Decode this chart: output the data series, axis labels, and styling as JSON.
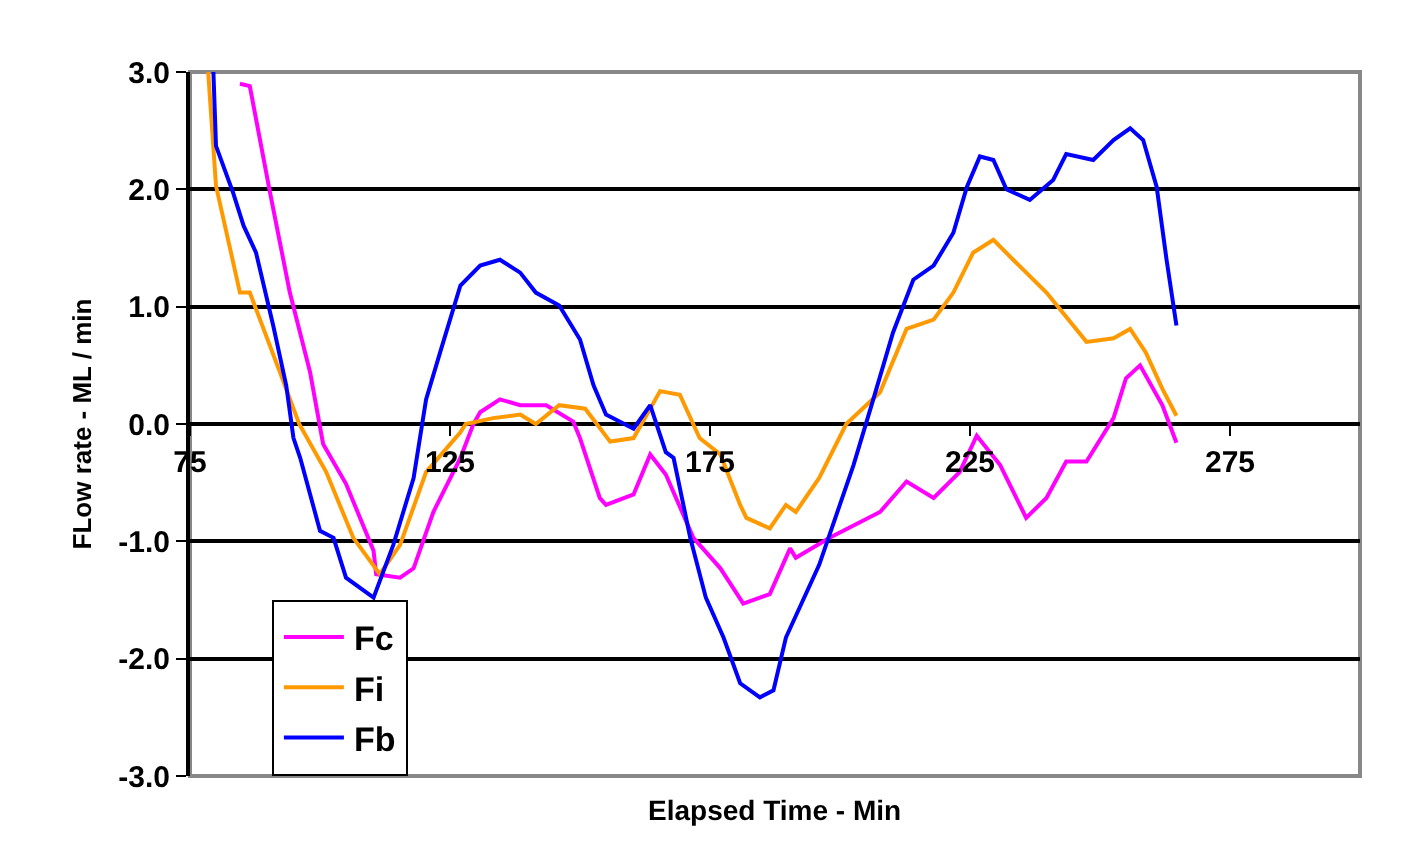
{
  "chart_data": {
    "type": "line",
    "xlabel": "Elapsed Time - Min",
    "ylabel": "FLow rate - ML / min",
    "xlim": [
      75,
      300
    ],
    "xticks": [
      75,
      125,
      175,
      225,
      275
    ],
    "ylim": [
      -3,
      3
    ],
    "yticks": [
      {
        "value": -3,
        "label": "-3.0"
      },
      {
        "value": -2,
        "label": "-2.0"
      },
      {
        "value": -1,
        "label": "-1.0"
      },
      {
        "value": 0,
        "label": "0.0"
      },
      {
        "value": 1,
        "label": "1.0"
      },
      {
        "value": 2,
        "label": "2.0"
      },
      {
        "value": 3,
        "label": "3.0"
      }
    ],
    "grid": "y",
    "legend": "bottom left",
    "marker": "none",
    "line_style": "solid",
    "series": [
      {
        "name": "Fc",
        "color": "#ff00ff",
        "x": [
          84.6,
          86.5,
          90.4,
          94.2,
          98.1,
          100.6,
          105,
          110.3,
          110.8,
          115.4,
          118,
          121.8,
          127,
          129.5,
          130.8,
          134.6,
          138.5,
          143.5,
          148.7,
          150,
          153.8,
          155,
          160.3,
          163.5,
          166.5,
          171.8,
          177,
          181.4,
          186.5,
          190.4,
          191.5,
          198,
          207.7,
          212.8,
          218,
          223,
          226.3,
          230.8,
          235.8,
          239.7,
          243.5,
          247.4,
          252.6,
          255,
          257.7,
          262,
          264.7
        ],
        "values": [
          2.9,
          2.88,
          1.97,
          1.12,
          0.44,
          -0.17,
          -0.51,
          -1.08,
          -1.28,
          -1.31,
          -1.23,
          -0.75,
          -0.29,
          0,
          0.1,
          0.21,
          0.16,
          0.16,
          0.02,
          -0.12,
          -0.63,
          -0.69,
          -0.6,
          -0.26,
          -0.43,
          -0.97,
          -1.23,
          -1.53,
          -1.45,
          -1.06,
          -1.14,
          -0.97,
          -0.75,
          -0.49,
          -0.63,
          -0.41,
          -0.1,
          -0.35,
          -0.8,
          -0.63,
          -0.32,
          -0.32,
          0.05,
          0.39,
          0.5,
          0.16,
          -0.16
        ]
      },
      {
        "name": "Fi",
        "color": "#ff9900",
        "x": [
          78.5,
          80,
          84.6,
          86.5,
          92.3,
          96,
          101.2,
          106.4,
          111.5,
          115.4,
          120.4,
          127,
          128,
          133.3,
          138.5,
          141.5,
          146,
          151,
          155.8,
          160.3,
          165.4,
          169.2,
          173,
          177,
          180.8,
          182,
          186.5,
          189.6,
          191.5,
          196,
          201.2,
          207.7,
          212.8,
          218,
          221.8,
          225.6,
          229.5,
          233.3,
          239.7,
          247.4,
          252.6,
          255.8,
          258.8,
          262,
          264.7
        ],
        "values": [
          3,
          2.03,
          1.12,
          1.12,
          0.44,
          0,
          -0.41,
          -0.97,
          -1.28,
          -1.03,
          -0.41,
          -0.07,
          0,
          0.05,
          0.08,
          0,
          0.16,
          0.13,
          -0.15,
          -0.12,
          0.28,
          0.25,
          -0.12,
          -0.26,
          -0.69,
          -0.8,
          -0.89,
          -0.69,
          -0.75,
          -0.46,
          0,
          0.27,
          0.81,
          0.89,
          1.12,
          1.46,
          1.57,
          1.4,
          1.12,
          0.7,
          0.73,
          0.81,
          0.61,
          0.3,
          0.07
        ]
      },
      {
        "name": "Fb",
        "color": "#0000ff",
        "x": [
          79.5,
          80,
          83.3,
          85.3,
          87.7,
          91,
          93.5,
          94.9,
          96.2,
          100,
          102.6,
          105,
          110.3,
          114.1,
          118,
          120.4,
          123.1,
          127,
          130.8,
          134.6,
          138.5,
          141.5,
          146,
          150,
          152.6,
          155,
          160.3,
          163.5,
          166.5,
          168,
          171.2,
          174.2,
          177.6,
          180.8,
          184.6,
          187.2,
          189.6,
          196,
          202.6,
          206.4,
          210.2,
          214.1,
          218,
          221.8,
          224.4,
          226.9,
          229.5,
          232,
          236.5,
          241,
          243.5,
          248.7,
          252.6,
          255.8,
          258.3,
          260.9,
          262.8,
          264.7
        ],
        "values": [
          3,
          2.37,
          1.97,
          1.69,
          1.46,
          0.84,
          0.33,
          -0.12,
          -0.29,
          -0.91,
          -0.97,
          -1.31,
          -1.48,
          -1.03,
          -0.46,
          0.21,
          0.61,
          1.18,
          1.35,
          1.4,
          1.29,
          1.12,
          1.01,
          0.72,
          0.33,
          0.08,
          -0.04,
          0.16,
          -0.24,
          -0.29,
          -0.97,
          -1.48,
          -1.82,
          -2.21,
          -2.33,
          -2.27,
          -1.82,
          -1.2,
          -0.35,
          0.21,
          0.78,
          1.23,
          1.35,
          1.63,
          2.02,
          2.28,
          2.25,
          2,
          1.91,
          2.08,
          2.3,
          2.25,
          2.42,
          2.52,
          2.42,
          2.02,
          1.4,
          0.84
        ]
      }
    ]
  }
}
